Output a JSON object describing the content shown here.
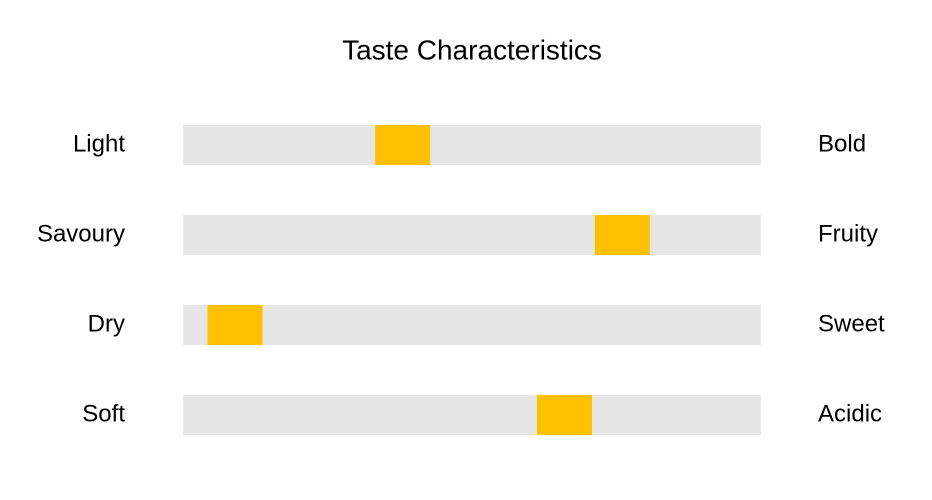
{
  "chart_data": {
    "type": "slider",
    "title": "Taste Characteristics",
    "left_labels": [
      "Light",
      "Savoury",
      "Dry",
      "Soft"
    ],
    "right_labels": [
      "Bold",
      "Fruity",
      "Sweet",
      "Acidic"
    ],
    "values": [
      0.38,
      0.76,
      0.09,
      0.66
    ],
    "xlim": [
      0,
      1
    ],
    "color": "#ffc000",
    "track_color": "#e6e6e6"
  }
}
